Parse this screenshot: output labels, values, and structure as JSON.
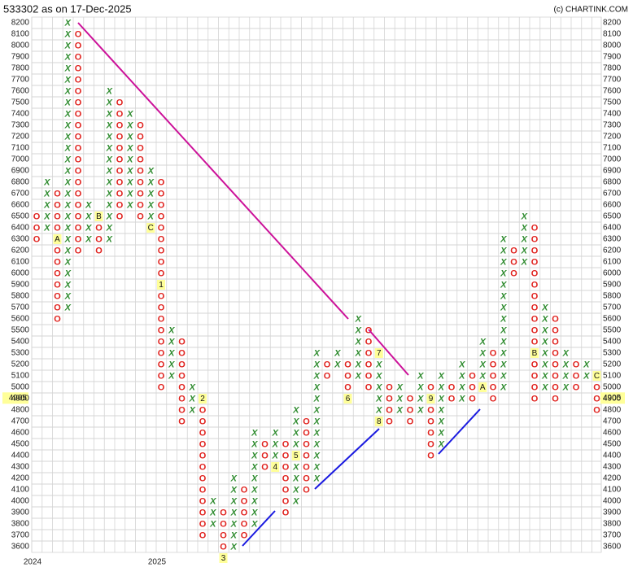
{
  "chart_data": {
    "type": "point-and-figure",
    "title": "533302 as on 17-Dec-2025",
    "credit": "(c) CHARTINK.COM",
    "x_color": "#2e8b2e",
    "o_color": "#e0201c",
    "marker_color": "#ffff99",
    "grid": true,
    "ylim": [
      3500,
      8200
    ],
    "yticks": [
      3600,
      3700,
      3800,
      3900,
      4000,
      4100,
      4200,
      4300,
      4400,
      4500,
      4600,
      4700,
      4800,
      4900,
      5000,
      5100,
      5200,
      5300,
      5400,
      5500,
      5600,
      5700,
      5800,
      5900,
      6000,
      6100,
      6200,
      6300,
      6400,
      6500,
      6600,
      6700,
      6800,
      6900,
      7000,
      7100,
      7200,
      7300,
      7400,
      7500,
      7600,
      7700,
      7800,
      7900,
      8000,
      8100,
      8200
    ],
    "last_price": 4905,
    "categories": [
      "2024",
      null,
      null,
      null,
      null,
      null,
      null,
      null,
      null,
      null,
      null,
      null,
      "2025",
      null,
      null,
      null,
      null,
      null,
      null,
      null,
      null,
      null,
      null,
      null,
      null,
      null,
      null,
      null,
      null,
      null,
      null,
      null,
      null,
      null,
      null,
      null,
      null,
      null,
      null,
      null,
      null,
      null,
      null,
      null,
      null,
      null,
      null,
      null,
      null,
      null,
      null,
      null,
      null,
      null,
      null
    ],
    "columns": [
      {
        "symbol": "O",
        "high": 6500,
        "low": 6300
      },
      {
        "symbol": "X",
        "high": 6800,
        "low": 6400
      },
      {
        "symbol": "O",
        "high": 6700,
        "low": 5600
      },
      {
        "symbol": "X",
        "high": 8200,
        "low": 5700
      },
      {
        "symbol": "O",
        "high": 8100,
        "low": 6200
      },
      {
        "symbol": "X",
        "high": 6600,
        "low": 6300
      },
      {
        "symbol": "O",
        "high": 6500,
        "low": 6200
      },
      {
        "symbol": "X",
        "high": 7600,
        "low": 6300
      },
      {
        "symbol": "O",
        "high": 7500,
        "low": 6500
      },
      {
        "symbol": "X",
        "high": 7400,
        "low": 6600
      },
      {
        "symbol": "O",
        "high": 7300,
        "low": 6500
      },
      {
        "symbol": "X",
        "high": 6900,
        "low": 6400
      },
      {
        "symbol": "O",
        "high": 6800,
        "low": 5000
      },
      {
        "symbol": "X",
        "high": 5500,
        "low": 5100
      },
      {
        "symbol": "O",
        "high": 5400,
        "low": 4700
      },
      {
        "symbol": "X",
        "high": 5000,
        "low": 4800
      },
      {
        "symbol": "O",
        "high": 4900,
        "low": 3700
      },
      {
        "symbol": "X",
        "high": 4000,
        "low": 3800
      },
      {
        "symbol": "O",
        "high": 3900,
        "low": 3500
      },
      {
        "symbol": "X",
        "high": 4200,
        "low": 3600
      },
      {
        "symbol": "O",
        "high": 4100,
        "low": 3700
      },
      {
        "symbol": "X",
        "high": 4600,
        "low": 3800
      },
      {
        "symbol": "O",
        "high": 4500,
        "low": 4300
      },
      {
        "symbol": "X",
        "high": 4600,
        "low": 4300
      },
      {
        "symbol": "O",
        "high": 4500,
        "low": 3900
      },
      {
        "symbol": "X",
        "high": 4800,
        "low": 4000
      },
      {
        "symbol": "O",
        "high": 4700,
        "low": 4100
      },
      {
        "symbol": "X",
        "high": 5300,
        "low": 4200
      },
      {
        "symbol": "O",
        "high": 5200,
        "low": 5100
      },
      {
        "symbol": "X",
        "high": 5300,
        "low": 5200
      },
      {
        "symbol": "O",
        "high": 5200,
        "low": 4900
      },
      {
        "symbol": "X",
        "high": 5600,
        "low": 5100
      },
      {
        "symbol": "O",
        "high": 5500,
        "low": 5000
      },
      {
        "symbol": "X",
        "high": 5300,
        "low": 4700
      },
      {
        "symbol": "O",
        "high": 5000,
        "low": 4700
      },
      {
        "symbol": "X",
        "high": 5000,
        "low": 4800
      },
      {
        "symbol": "O",
        "high": 4900,
        "low": 4700
      },
      {
        "symbol": "X",
        "high": 5100,
        "low": 4800
      },
      {
        "symbol": "O",
        "high": 5000,
        "low": 4400
      },
      {
        "symbol": "X",
        "high": 5100,
        "low": 4500
      },
      {
        "symbol": "O",
        "high": 5000,
        "low": 4900
      },
      {
        "symbol": "X",
        "high": 5200,
        "low": 4900
      },
      {
        "symbol": "O",
        "high": 5100,
        "low": 4900
      },
      {
        "symbol": "X",
        "high": 5400,
        "low": 5000
      },
      {
        "symbol": "O",
        "high": 5300,
        "low": 4900
      },
      {
        "symbol": "X",
        "high": 6300,
        "low": 5000
      },
      {
        "symbol": "O",
        "high": 6200,
        "low": 6000
      },
      {
        "symbol": "X",
        "high": 6500,
        "low": 6100
      },
      {
        "symbol": "O",
        "high": 6400,
        "low": 4900
      },
      {
        "symbol": "X",
        "high": 5700,
        "low": 5000
      },
      {
        "symbol": "O",
        "high": 5600,
        "low": 4900
      },
      {
        "symbol": "X",
        "high": 5300,
        "low": 5000
      },
      {
        "symbol": "O",
        "high": 5200,
        "low": 5000
      },
      {
        "symbol": "X",
        "high": 5200,
        "low": 5100
      },
      {
        "symbol": "O",
        "high": 5100,
        "low": 4800
      }
    ],
    "markers": [
      {
        "column": 2,
        "value": 6300,
        "label": "A"
      },
      {
        "column": 6,
        "value": 6500,
        "label": "B"
      },
      {
        "column": 11,
        "value": 6400,
        "label": "C"
      },
      {
        "column": 12,
        "value": 5900,
        "label": "1"
      },
      {
        "column": 16,
        "value": 4900,
        "label": "2"
      },
      {
        "column": 18,
        "value": 3500,
        "label": "3"
      },
      {
        "column": 23,
        "value": 4300,
        "label": "4"
      },
      {
        "column": 25,
        "value": 4400,
        "label": "5"
      },
      {
        "column": 30,
        "value": 4900,
        "label": "6"
      },
      {
        "column": 33,
        "value": 5300,
        "label": "7"
      },
      {
        "column": 33,
        "value": 4700,
        "label": "8"
      },
      {
        "column": 38,
        "value": 4900,
        "label": "9"
      },
      {
        "column": 43,
        "value": 5000,
        "label": "A"
      },
      {
        "column": 48,
        "value": 5300,
        "label": "B"
      },
      {
        "column": 54,
        "value": 5100,
        "label": "C"
      }
    ]
  }
}
